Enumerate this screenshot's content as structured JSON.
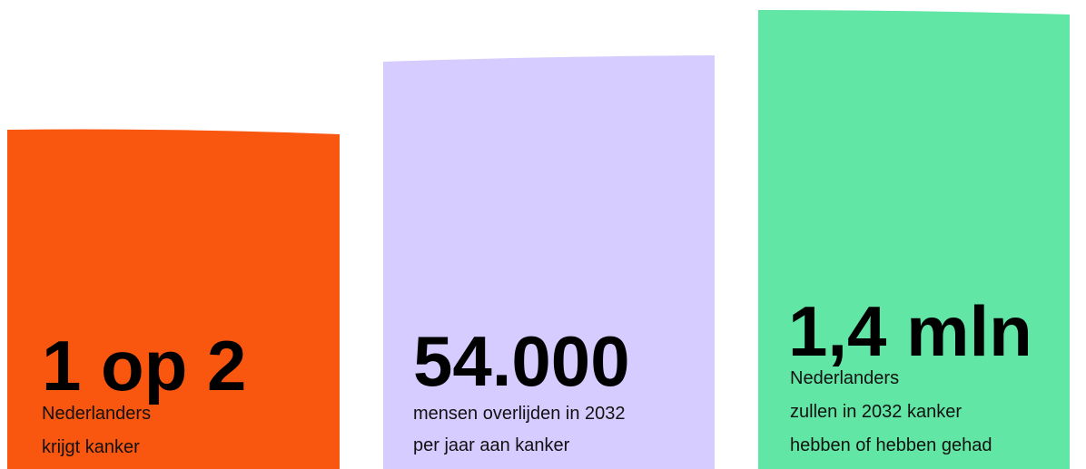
{
  "cards": [
    {
      "stat": "1 op 2",
      "lines": [
        "Nederlanders",
        "krijgt kanker"
      ]
    },
    {
      "stat": "54.000",
      "lines": [
        "mensen overlijden in 2032",
        "per jaar aan kanker"
      ]
    },
    {
      "stat": "1,4 mln",
      "lines": [
        "Nederlanders",
        "zullen in 2032 kanker",
        "hebben of hebben gehad"
      ]
    }
  ]
}
